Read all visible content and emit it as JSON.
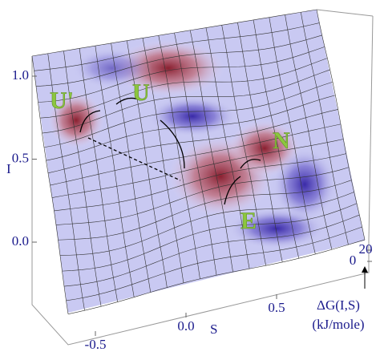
{
  "chart_data": {
    "type": "surface",
    "x_label": "S",
    "y_label": "I",
    "z_label": [
      "ΔG(I,S)",
      "(kJ/mole)"
    ],
    "xticks": [
      -0.5,
      {
        "value": 0,
        "label": "0.0"
      },
      0.5
    ],
    "yticks": [
      {
        "value": 0,
        "label": "0.0"
      },
      0.5,
      {
        "value": 1,
        "label": "1.0"
      }
    ],
    "zticks": [
      0,
      20
    ],
    "annotations": [
      "U'",
      "U",
      "N",
      "E"
    ]
  }
}
